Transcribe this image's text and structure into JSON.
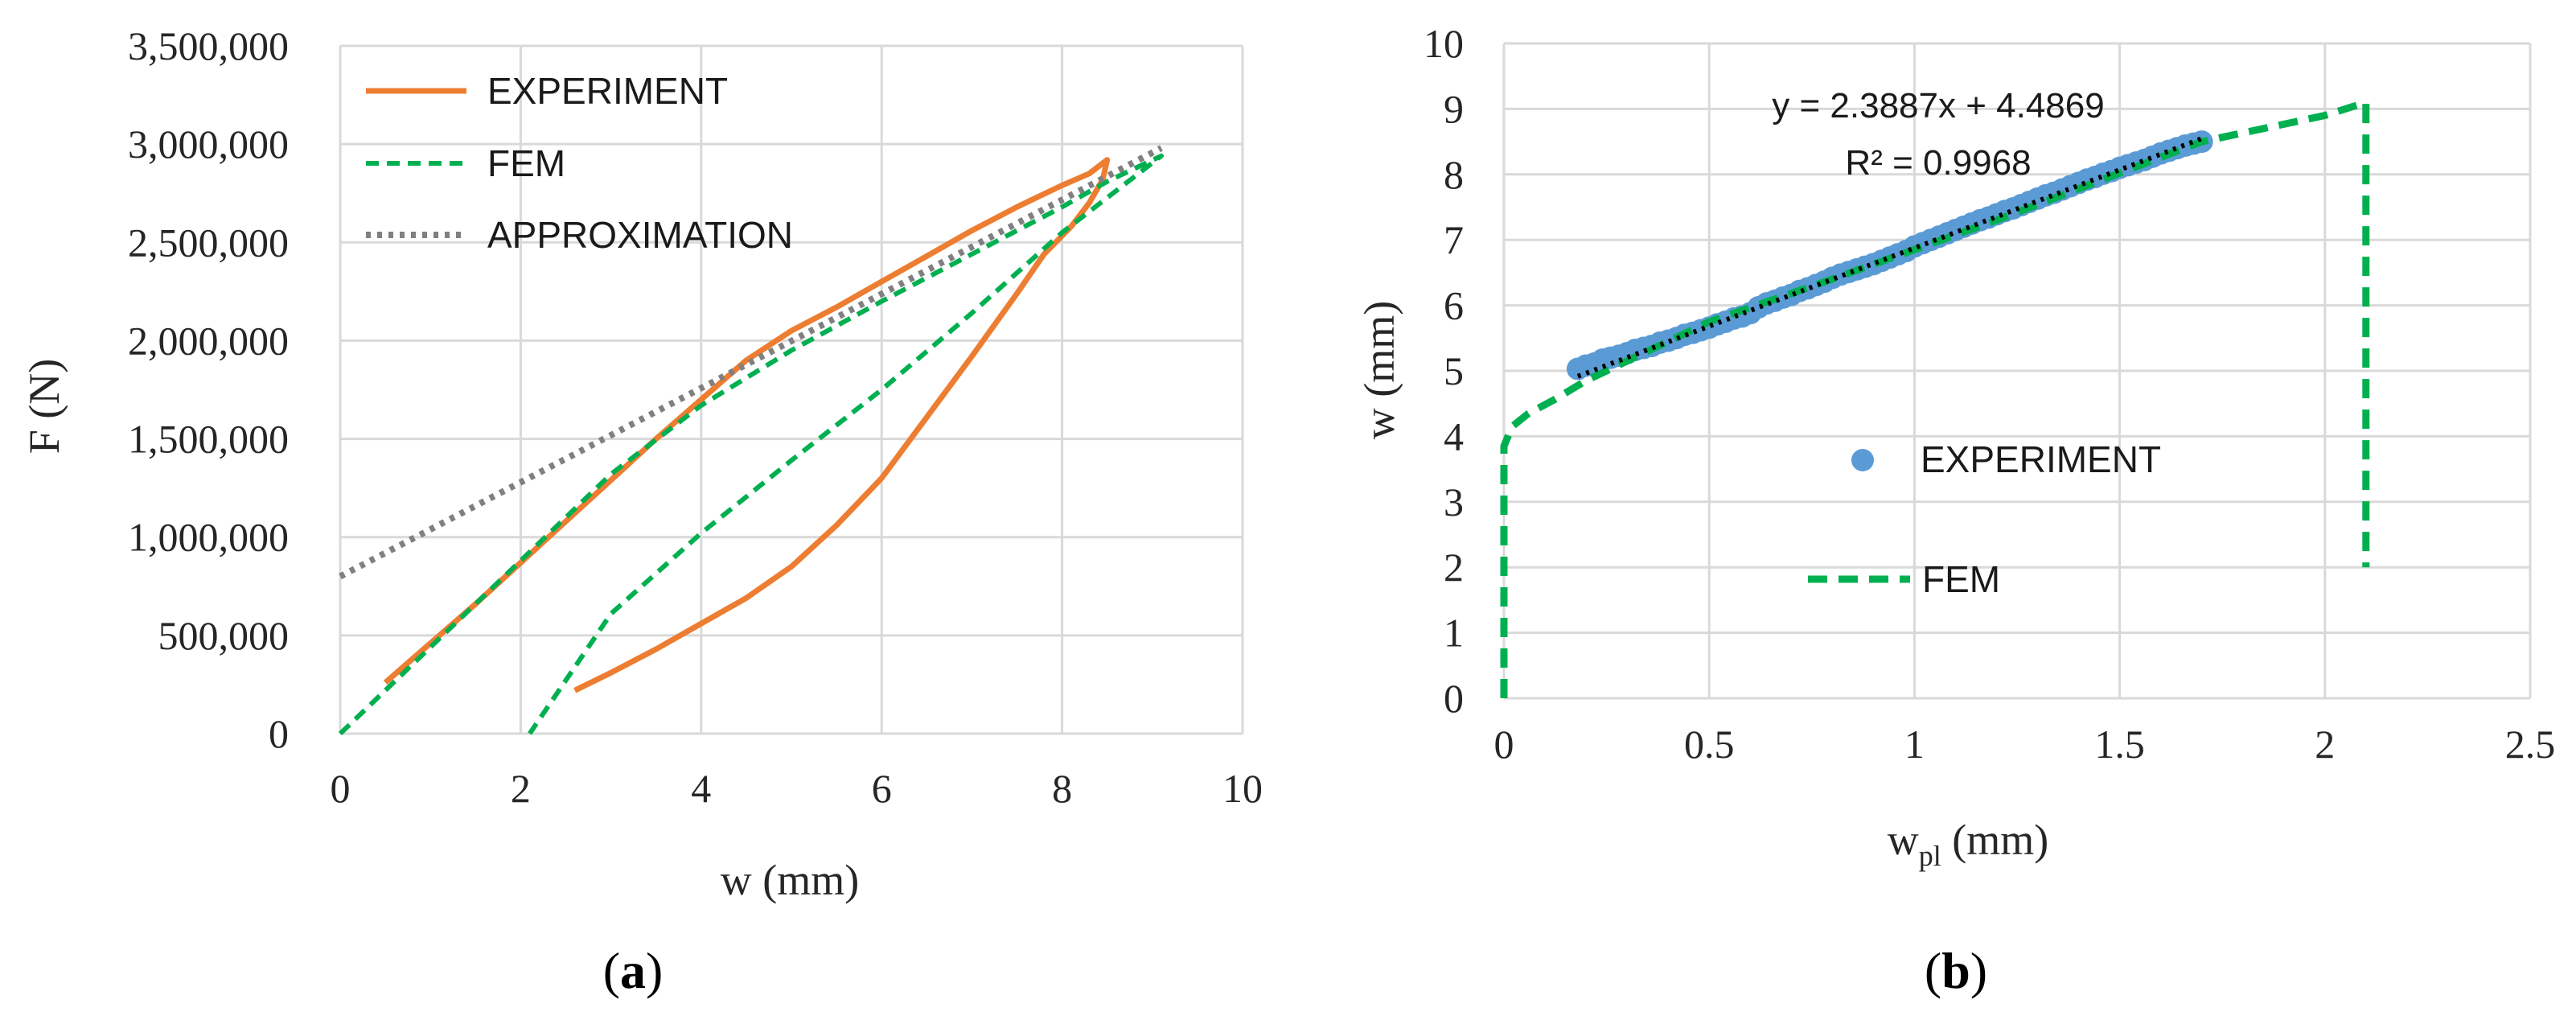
{
  "chart_data": [
    {
      "id": "a",
      "type": "line",
      "caption_open": "(",
      "caption_letter": "a",
      "caption_close": ")",
      "xlabel": "w (mm)",
      "ylabel": "F (N)",
      "xlim": [
        0,
        10
      ],
      "ylim": [
        0,
        3500000
      ],
      "xticks": [
        0,
        2,
        4,
        6,
        8,
        10
      ],
      "xtick_labels": [
        "0",
        "2",
        "4",
        "6",
        "8",
        "10"
      ],
      "yticks": [
        0,
        500000,
        1000000,
        1500000,
        2000000,
        2500000,
        3000000,
        3500000
      ],
      "ytick_labels": [
        "0",
        "500,000",
        "1,000,000",
        "1,500,000",
        "2,000,000",
        "2,500,000",
        "3,000,000",
        "3,500,000"
      ],
      "grid": "vertical and horizontal",
      "legend_position": "top-left",
      "series": [
        {
          "name": "EXPERIMENT",
          "style": "solid",
          "color": "#ED7D31",
          "x": [
            0.5,
            1.0,
            1.5,
            2.0,
            2.5,
            3.0,
            3.5,
            4.0,
            4.5,
            5.0,
            5.5,
            6.0,
            6.5,
            7.0,
            7.5,
            8.0,
            8.3,
            8.5,
            8.45,
            8.3,
            8.1,
            7.8,
            7.5,
            7.0,
            6.5,
            6.0,
            5.5,
            5.0,
            4.5,
            4.0,
            3.5,
            3.0,
            2.6
          ],
          "y": [
            260000,
            460000,
            660000,
            870000,
            1080000,
            1290000,
            1500000,
            1700000,
            1900000,
            2050000,
            2170000,
            2300000,
            2430000,
            2560000,
            2680000,
            2790000,
            2850000,
            2920000,
            2820000,
            2700000,
            2580000,
            2440000,
            2240000,
            1920000,
            1610000,
            1300000,
            1060000,
            850000,
            690000,
            560000,
            430000,
            310000,
            220000
          ]
        },
        {
          "name": "FEM",
          "style": "dashed",
          "color": "#00B050",
          "x": [
            0.0,
            1.0,
            2.0,
            3.0,
            4.0,
            5.0,
            6.0,
            7.0,
            8.0,
            8.5,
            9.1,
            8.0,
            7.0,
            6.0,
            5.0,
            4.0,
            3.0,
            2.1
          ],
          "y": [
            0,
            440000,
            880000,
            1320000,
            1670000,
            1950000,
            2200000,
            2440000,
            2680000,
            2810000,
            2940000,
            2550000,
            2140000,
            1750000,
            1390000,
            1020000,
            610000,
            0
          ]
        },
        {
          "name": "APPROXIMATION",
          "style": "dotted",
          "color": "#808080",
          "x": [
            0.0,
            9.1
          ],
          "y": [
            800000,
            2980000
          ]
        }
      ]
    },
    {
      "id": "b",
      "type": "scatter",
      "caption_open": "(",
      "caption_letter": "b",
      "caption_close": ")",
      "xlabel_main": "w",
      "xlabel_sub": "pl",
      "xlabel_unit": " (mm)",
      "ylabel": "w (mm)",
      "xlim": [
        0,
        2.5
      ],
      "ylim": [
        0,
        10
      ],
      "xticks": [
        0,
        0.5,
        1,
        1.5,
        2,
        2.5
      ],
      "xtick_labels": [
        "0",
        "0.5",
        "1",
        "1.5",
        "2",
        "2.5"
      ],
      "yticks": [
        0,
        1,
        2,
        3,
        4,
        5,
        6,
        7,
        8,
        9,
        10
      ],
      "ytick_labels": [
        "0",
        "1",
        "2",
        "3",
        "4",
        "5",
        "6",
        "7",
        "8",
        "9",
        "10"
      ],
      "grid": "vertical and horizontal",
      "legend_position": "center",
      "trendline": {
        "equation": "y = 2.3887x + 4.4869",
        "r2": "R² = 0.9968",
        "slope": 2.3887,
        "intercept": 4.4869,
        "x_range": [
          0.18,
          1.7
        ],
        "style": "dotted",
        "color": "#000000"
      },
      "series": [
        {
          "name": "EXPERIMENT",
          "style": "markers",
          "color": "#5B9BD5",
          "x": [
            0.18,
            0.2,
            0.22,
            0.24,
            0.26,
            0.28,
            0.3,
            0.32,
            0.34,
            0.36,
            0.38,
            0.4,
            0.42,
            0.44,
            0.46,
            0.48,
            0.5,
            0.52,
            0.54,
            0.56,
            0.58,
            0.6,
            0.62,
            0.64,
            0.66,
            0.68,
            0.7,
            0.72,
            0.74,
            0.76,
            0.78,
            0.8,
            0.82,
            0.84,
            0.86,
            0.88,
            0.9,
            0.92,
            0.94,
            0.96,
            0.98,
            1.0,
            1.02,
            1.04,
            1.06,
            1.08,
            1.1,
            1.12,
            1.14,
            1.16,
            1.18,
            1.2,
            1.22,
            1.24,
            1.26,
            1.28,
            1.3,
            1.32,
            1.34,
            1.36,
            1.38,
            1.4,
            1.42,
            1.44,
            1.46,
            1.48,
            1.5,
            1.52,
            1.54,
            1.56,
            1.58,
            1.6,
            1.62,
            1.64,
            1.66,
            1.68,
            1.7
          ],
          "y": [
            5.03,
            5.08,
            5.11,
            5.17,
            5.2,
            5.23,
            5.27,
            5.32,
            5.35,
            5.38,
            5.43,
            5.46,
            5.5,
            5.55,
            5.58,
            5.62,
            5.66,
            5.71,
            5.75,
            5.8,
            5.83,
            5.88,
            5.97,
            6.03,
            6.07,
            6.12,
            6.16,
            6.22,
            6.26,
            6.31,
            6.36,
            6.42,
            6.47,
            6.51,
            6.55,
            6.59,
            6.63,
            6.68,
            6.73,
            6.78,
            6.83,
            6.9,
            6.95,
            7.0,
            7.05,
            7.1,
            7.15,
            7.2,
            7.25,
            7.3,
            7.34,
            7.39,
            7.44,
            7.48,
            7.53,
            7.58,
            7.63,
            7.68,
            7.72,
            7.77,
            7.82,
            7.87,
            7.92,
            7.96,
            8.01,
            8.05,
            8.1,
            8.14,
            8.18,
            8.22,
            8.27,
            8.32,
            8.36,
            8.4,
            8.44,
            8.47,
            8.5
          ]
        },
        {
          "name": "FEM",
          "style": "dashed",
          "color": "#00B050",
          "x": [
            0.0,
            0.0,
            0.0,
            0.02,
            0.06,
            0.12,
            0.2,
            0.5,
            0.8,
            1.2,
            1.7,
            2.0,
            2.1,
            2.1,
            2.1
          ],
          "y": [
            0.0,
            2.0,
            3.85,
            4.15,
            4.35,
            4.55,
            4.85,
            5.75,
            6.4,
            7.3,
            8.5,
            8.9,
            9.1,
            5.0,
            2.0
          ]
        }
      ]
    }
  ]
}
